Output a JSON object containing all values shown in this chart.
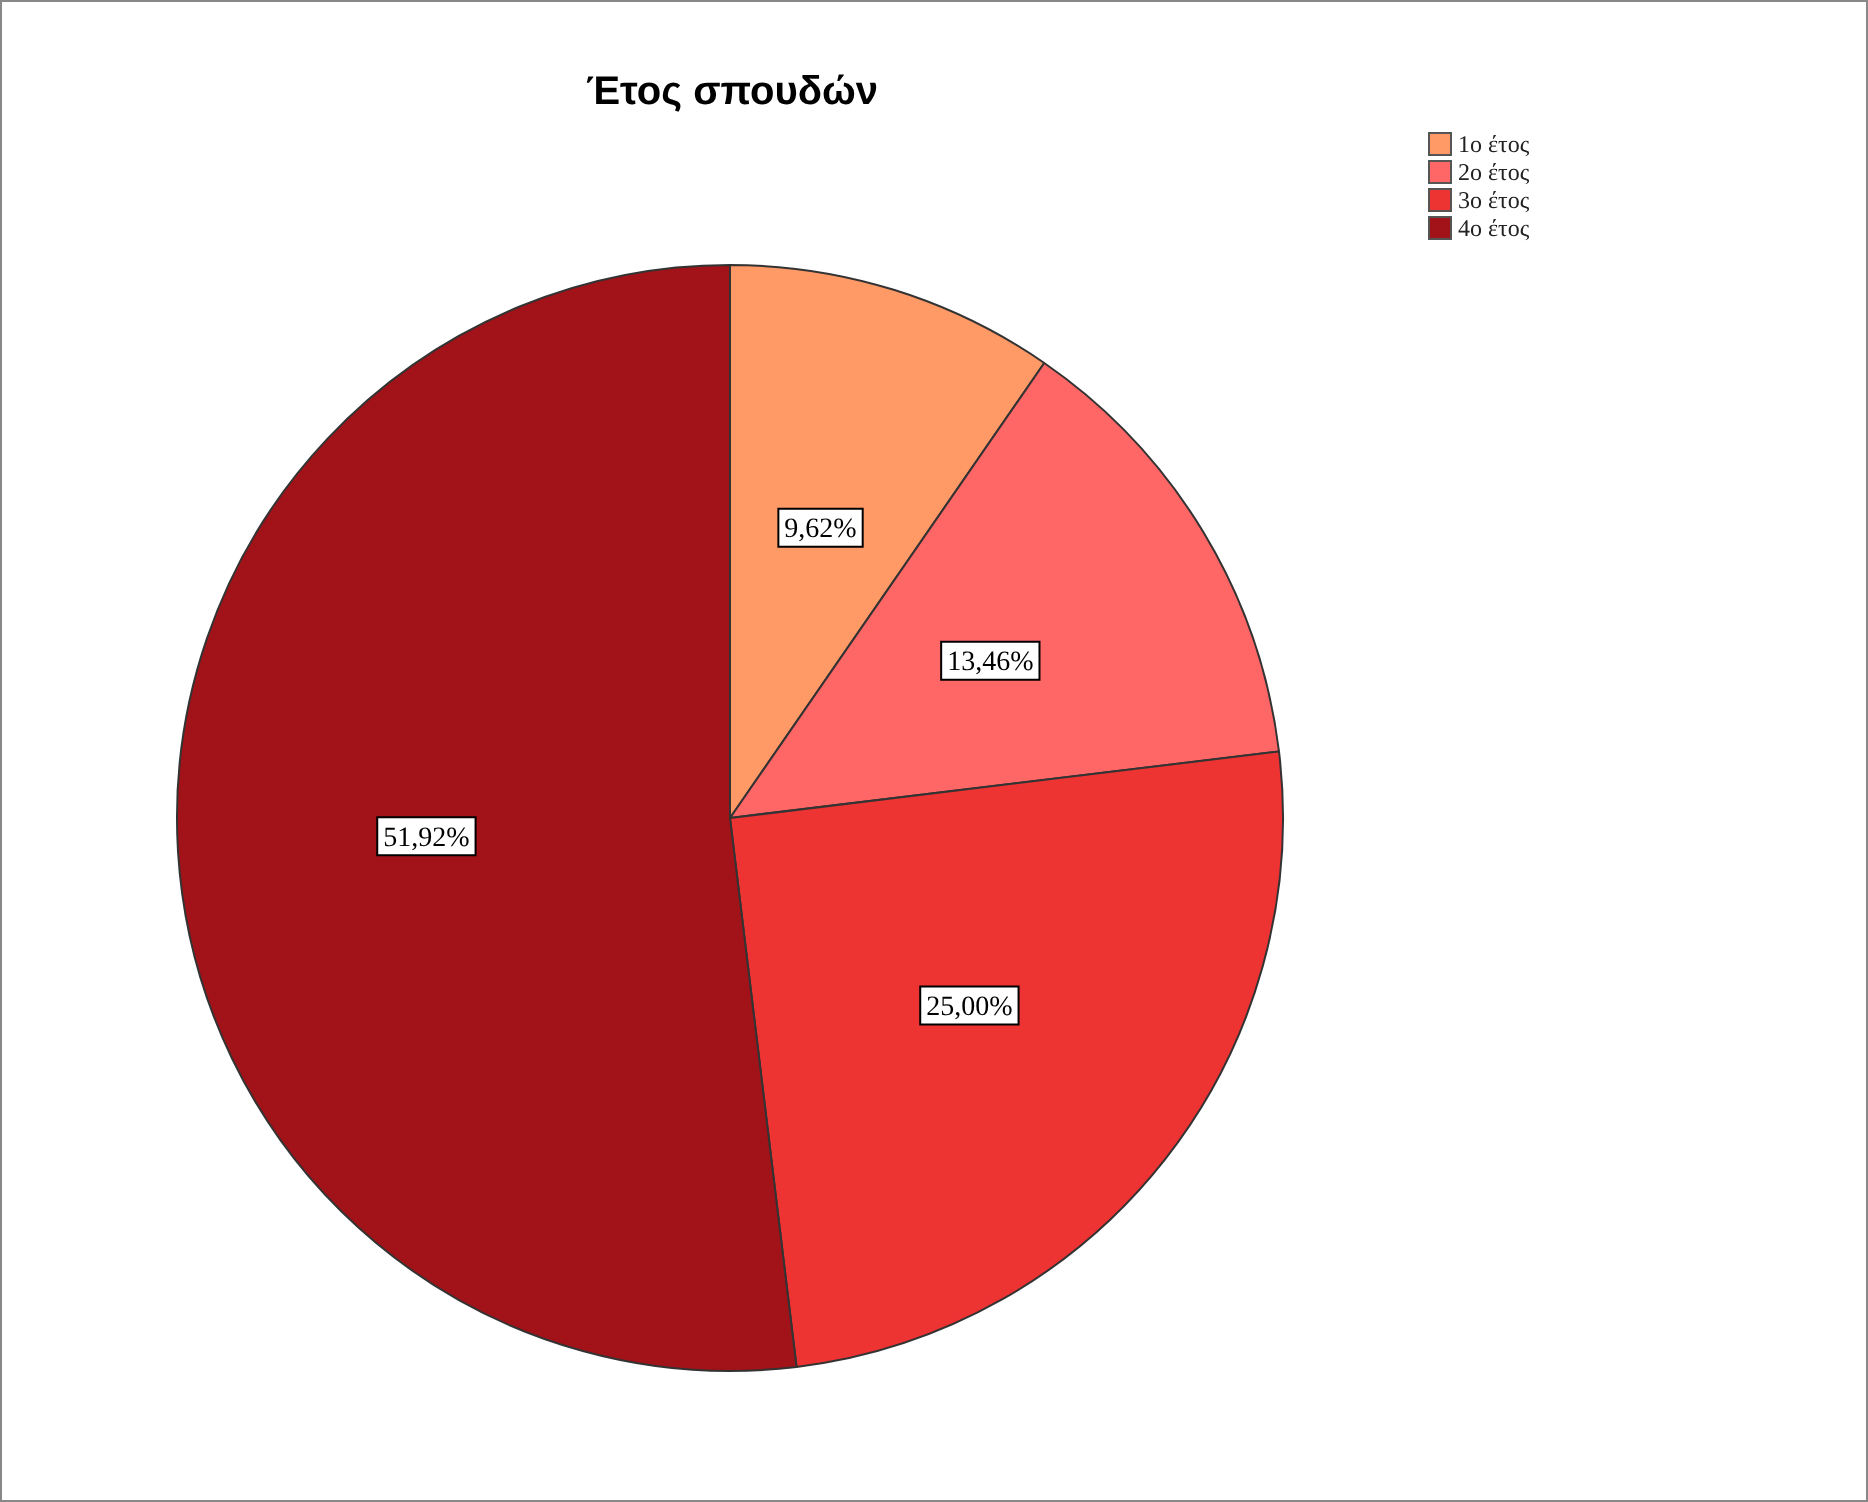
{
  "chart_data": {
    "type": "pie",
    "title": "Έτος σπουδών",
    "categories": [
      "1ο έτος",
      "2ο έτος",
      "3ο έτος",
      "4ο έτος"
    ],
    "values": [
      9.62,
      13.46,
      25.0,
      51.92
    ],
    "colors": [
      "#ff9966",
      "#ff6666",
      "#ee3333",
      "#a11318"
    ],
    "value_labels": [
      "9,62%",
      "13,46%",
      "25,00%",
      "51,92%"
    ],
    "legend": "top right"
  }
}
